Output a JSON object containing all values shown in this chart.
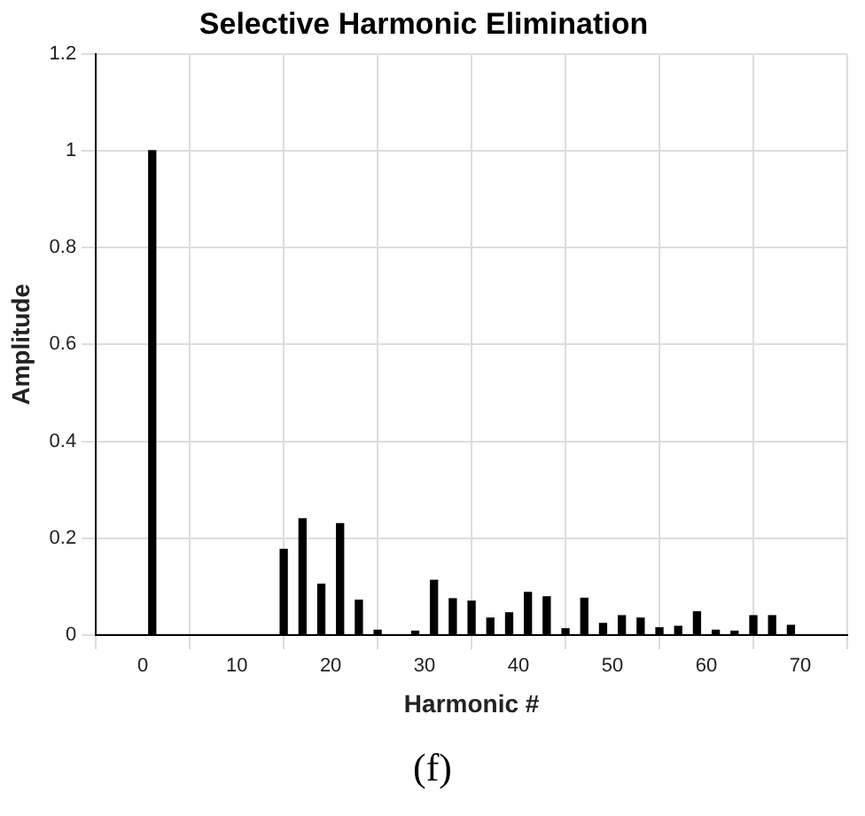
{
  "chart_data": {
    "type": "bar",
    "title": "Selective Harmonic Elimination",
    "xlabel": "Harmonic #",
    "ylabel": "Amplitude",
    "x": [
      1,
      3,
      5,
      7,
      9,
      11,
      13,
      15,
      17,
      19,
      21,
      23,
      25,
      27,
      29,
      31,
      33,
      35,
      37,
      39,
      41,
      43,
      45,
      47,
      49,
      51,
      53,
      55,
      57,
      59,
      61,
      63,
      65,
      67,
      69
    ],
    "values": [
      1,
      0,
      0,
      0,
      0,
      0,
      0,
      0.177,
      0.24,
      0.105,
      0.23,
      0.072,
      0.01,
      0,
      0.008,
      0.113,
      0.075,
      0.07,
      0.035,
      0.046,
      0.088,
      0.079,
      0.013,
      0.076,
      0.024,
      0.04,
      0.035,
      0.015,
      0.018,
      0.048,
      0.01,
      0.008,
      0.04,
      0.04,
      0.02
    ],
    "color": "#000000",
    "xlim": [
      0,
      70
    ],
    "xticks": [
      0,
      10,
      20,
      30,
      40,
      50,
      60,
      70
    ],
    "ylim": [
      0,
      1.2
    ],
    "yticks": [
      0,
      0.2,
      0.4,
      0.6,
      0.8,
      1,
      1.2
    ],
    "grid": true,
    "legend": false,
    "annotations": [
      "(f)"
    ]
  }
}
